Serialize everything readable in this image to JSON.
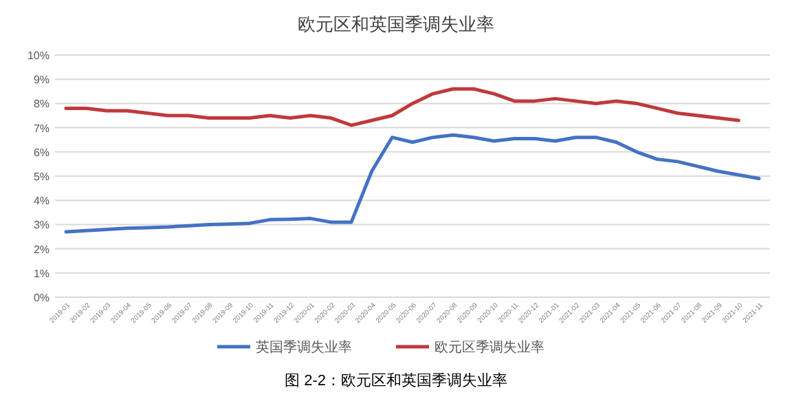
{
  "chart_data": {
    "type": "line",
    "title": "欧元区和英国季调失业率",
    "categories": [
      "2019-01",
      "2019-02",
      "2019-03",
      "2019-04",
      "2019-05",
      "2019-06",
      "2019-07",
      "2019-08",
      "2019-09",
      "2019-10",
      "2019-11",
      "2019-12",
      "2020-01",
      "2020-02",
      "2020-03",
      "2020-04",
      "2020-05",
      "2020-06",
      "2020-07",
      "2020-08",
      "2020-09",
      "2020-10",
      "2020-11",
      "2020-12",
      "2021-01",
      "2021-02",
      "2021-03",
      "2021-04",
      "2021-05",
      "2021-06",
      "2021-07",
      "2021-08",
      "2021-09",
      "2021-10",
      "2021-11"
    ],
    "series": [
      {
        "name": "英国季调失业率",
        "color": "#4472c4",
        "values": [
          2.7,
          2.75,
          2.8,
          2.85,
          2.87,
          2.9,
          2.95,
          3.0,
          3.02,
          3.05,
          3.2,
          3.22,
          3.25,
          3.1,
          3.1,
          5.2,
          6.6,
          6.4,
          6.6,
          6.7,
          6.6,
          6.45,
          6.55,
          6.55,
          6.45,
          6.6,
          6.6,
          6.4,
          6.0,
          5.7,
          5.6,
          5.4,
          5.2,
          5.05,
          4.9
        ]
      },
      {
        "name": "欧元区季调失业率",
        "color": "#c0393b",
        "values": [
          7.8,
          7.8,
          7.7,
          7.7,
          7.6,
          7.5,
          7.5,
          7.4,
          7.4,
          7.4,
          7.5,
          7.4,
          7.5,
          7.4,
          7.1,
          7.3,
          7.5,
          8.0,
          8.4,
          8.6,
          8.6,
          8.4,
          8.1,
          8.1,
          8.2,
          8.1,
          8.0,
          8.1,
          8.0,
          7.8,
          7.6,
          7.5,
          7.4,
          7.3,
          null
        ]
      }
    ],
    "ylim": [
      0,
      10
    ],
    "yticks": [
      {
        "value": 0,
        "label": "0%"
      },
      {
        "value": 1,
        "label": "1%"
      },
      {
        "value": 2,
        "label": "2%"
      },
      {
        "value": 3,
        "label": "3%"
      },
      {
        "value": 4,
        "label": "4%"
      },
      {
        "value": 5,
        "label": "5%"
      },
      {
        "value": 6,
        "label": "6%"
      },
      {
        "value": 7,
        "label": "7%"
      },
      {
        "value": 8,
        "label": "8%"
      },
      {
        "value": 9,
        "label": "9%"
      },
      {
        "value": 10,
        "label": "10%"
      }
    ],
    "grid": "y",
    "legend": "bottom",
    "marker": "none",
    "line_style": "solid",
    "annotations": [
      "图 2-2：欧元区和英国季调失业率"
    ]
  }
}
